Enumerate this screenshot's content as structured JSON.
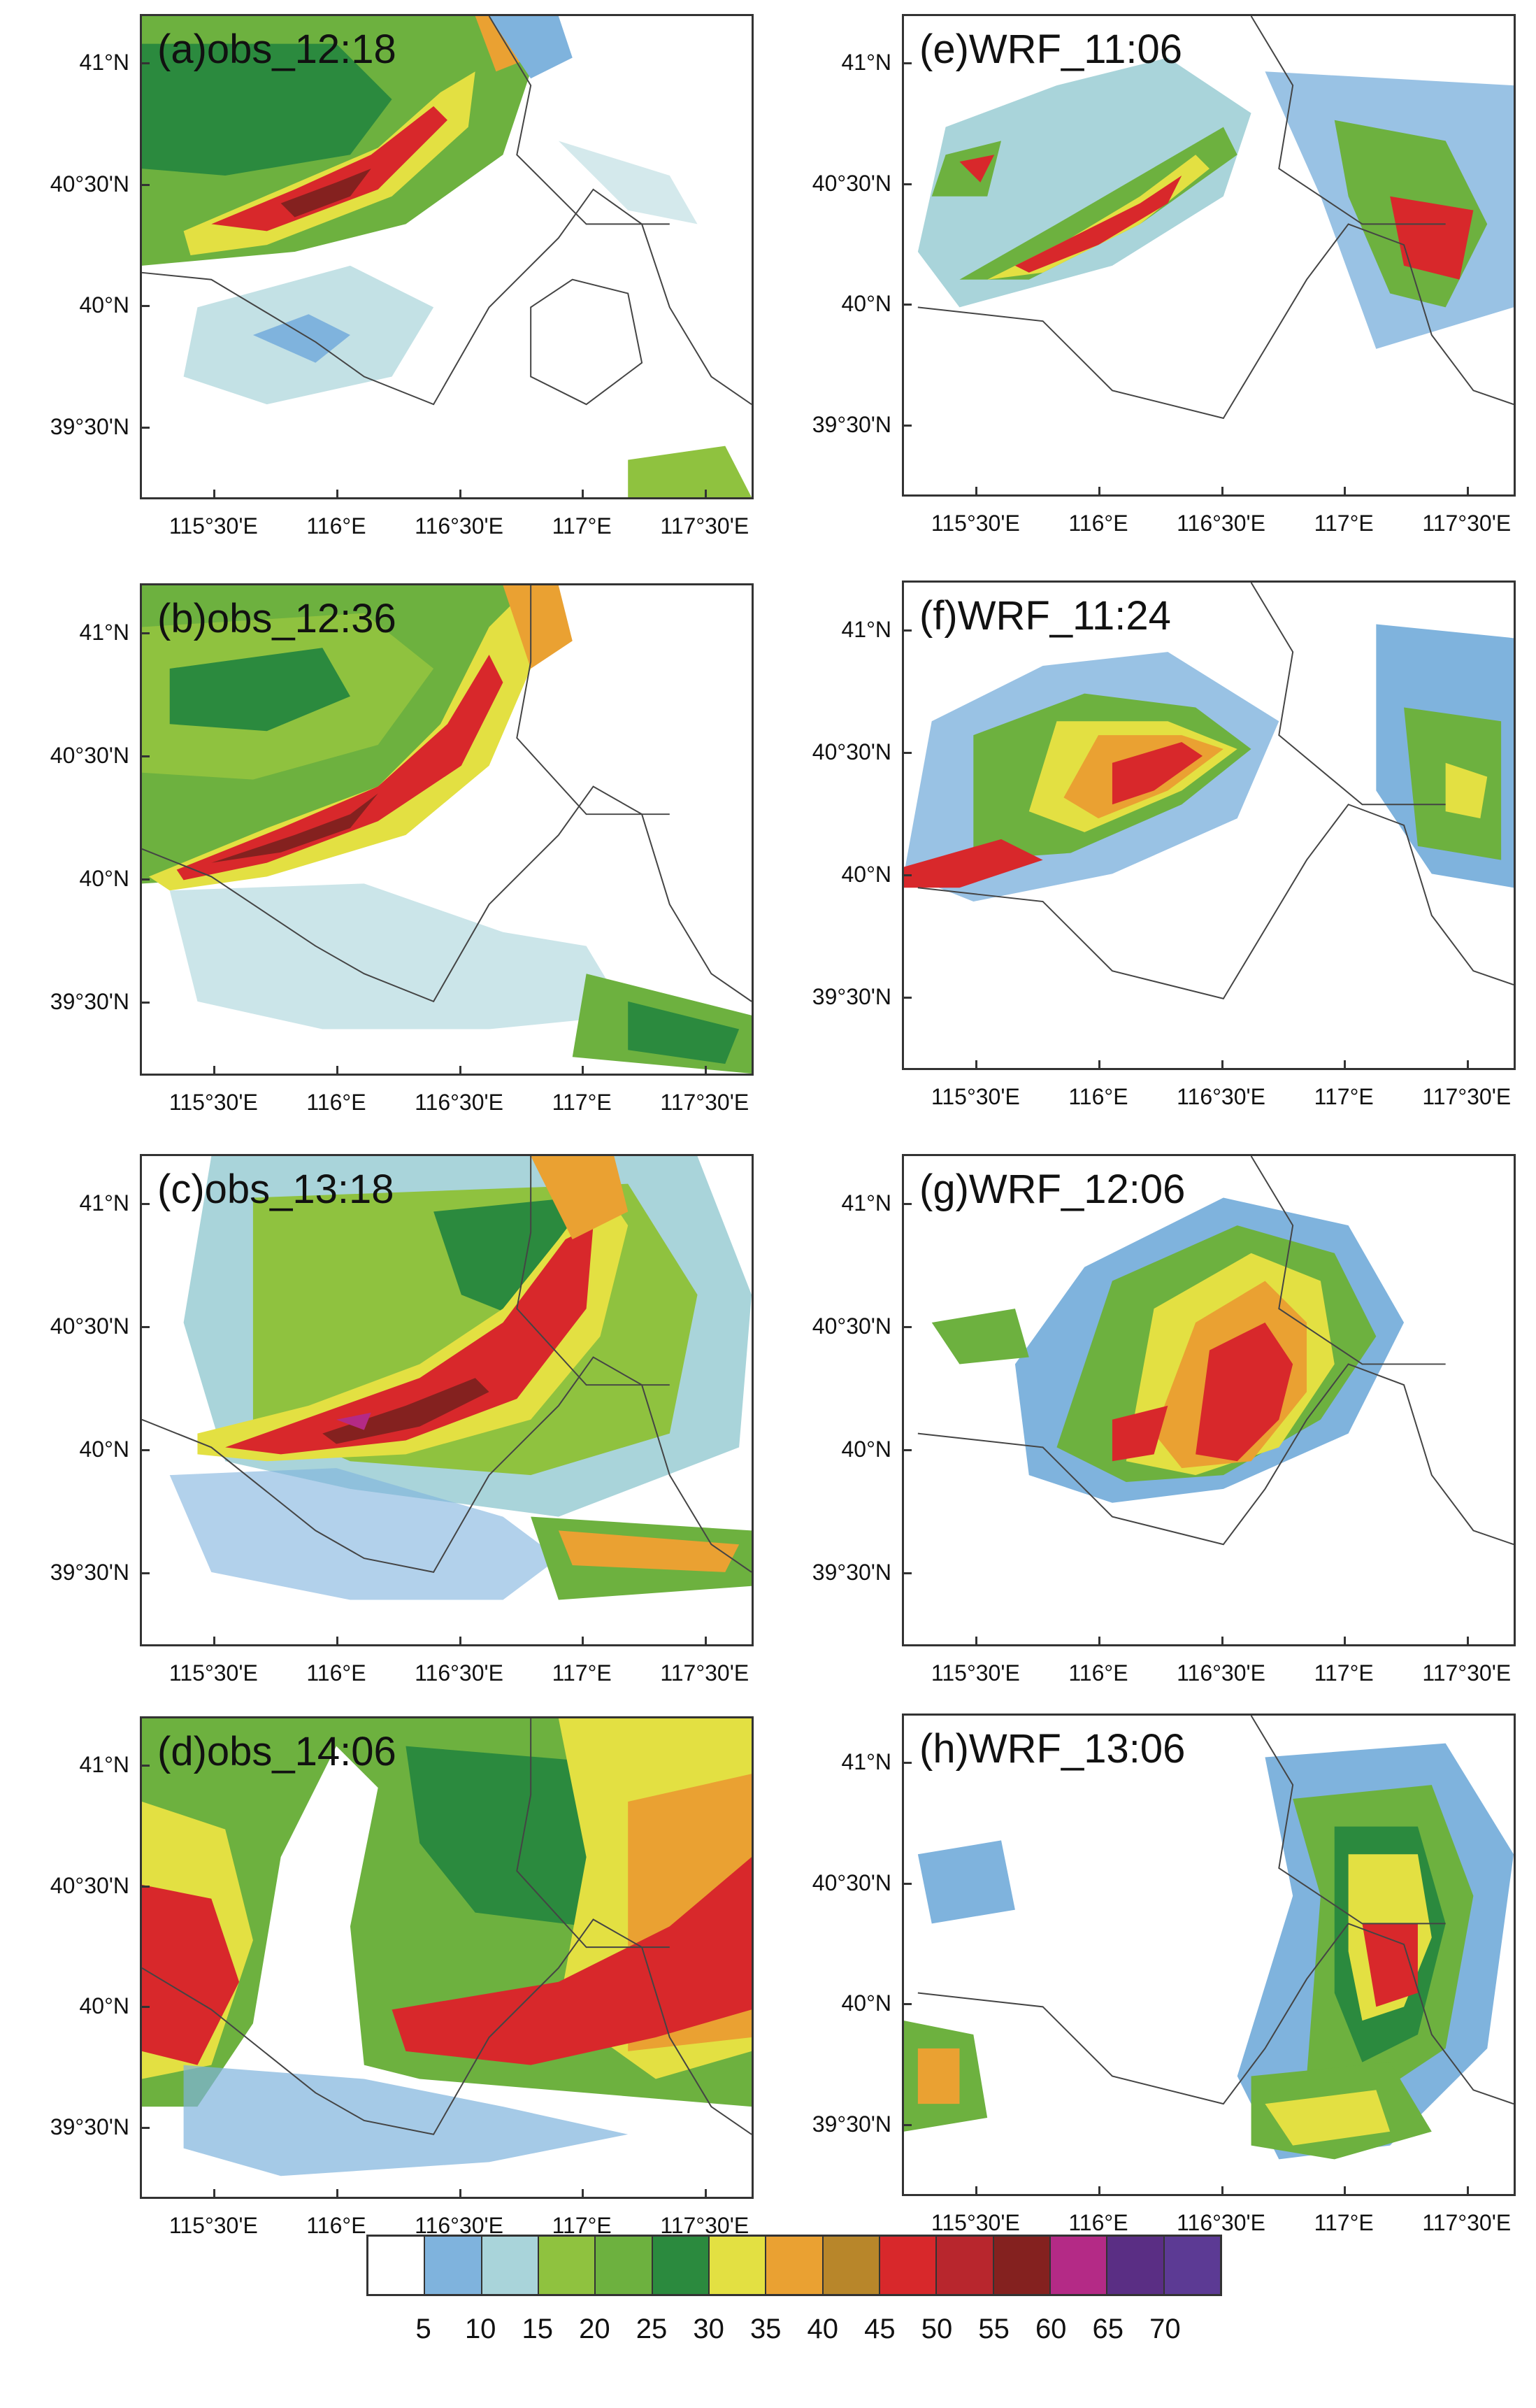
{
  "panels": [
    {
      "title": "(a)obs_12:18"
    },
    {
      "title": "(b)obs_12:36"
    },
    {
      "title": "(c)obs_13:18"
    },
    {
      "title": "(d)obs_14:06"
    },
    {
      "title": "(e)WRF_11:06"
    },
    {
      "title": "(f)WRF_11:24"
    },
    {
      "title": "(g)WRF_12:06"
    },
    {
      "title": "(h)WRF_13:06"
    }
  ],
  "axes": {
    "lat_labels": [
      "41°N",
      "40°30'N",
      "40°N",
      "39°30'N"
    ],
    "lon_labels": [
      "115°30'E",
      "116°E",
      "116°30'E",
      "117°E",
      "117°30'E"
    ]
  },
  "colorbar": {
    "labels": [
      "5",
      "10",
      "15",
      "20",
      "25",
      "30",
      "35",
      "40",
      "45",
      "50",
      "55",
      "60",
      "65",
      "70"
    ],
    "colors": [
      "#ffffff",
      "#7fb3dd",
      "#a9d4da",
      "#8fc23f",
      "#6db13f",
      "#2b8a3e",
      "#e3e042",
      "#eaa132",
      "#b8862a",
      "#d8282b",
      "#b8262d",
      "#84211f",
      "#b42a86",
      "#5a2e84",
      "#5c3a94"
    ]
  }
}
